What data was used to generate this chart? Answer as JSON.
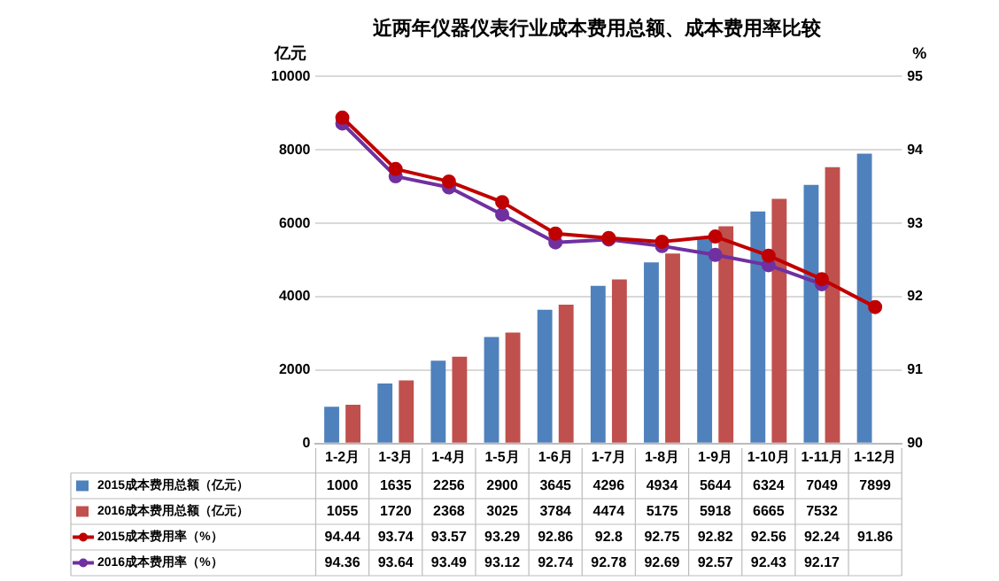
{
  "chart_data": {
    "type": "bar",
    "title": "近两年仪器仪表行业成本费用总额、成本费用率比较",
    "ylabel": "亿元",
    "y2label": "%",
    "categories": [
      "1-2月",
      "1-3月",
      "1-4月",
      "1-5月",
      "1-6月",
      "1-7月",
      "1-8月",
      "1-9月",
      "1-10月",
      "1-11月",
      "1-12月"
    ],
    "series": [
      {
        "name": "2015成本费用总额（亿元）",
        "color": "#4f81bd",
        "values": [
          1000,
          1635,
          2256,
          2900,
          3645,
          4296,
          4934,
          5644,
          6324,
          7049,
          7899
        ]
      },
      {
        "name": "2016成本费用总额（亿元）",
        "color": "#c0504d",
        "values": [
          1055,
          1720,
          2368,
          3025,
          3784,
          4474,
          5175,
          5918,
          6665,
          7532,
          null
        ]
      },
      {
        "name": "2015成本费用率（%）",
        "type": "line",
        "axis": "y2",
        "color": "#c00000",
        "values": [
          94.44,
          93.74,
          93.57,
          93.29,
          92.86,
          92.8,
          92.75,
          92.82,
          92.56,
          92.24,
          91.86
        ]
      },
      {
        "name": "2016成本费用率（%）",
        "type": "line",
        "axis": "y2",
        "color": "#7030a0",
        "values": [
          94.36,
          93.64,
          93.49,
          93.12,
          92.74,
          92.78,
          92.69,
          92.57,
          92.43,
          92.17,
          null
        ]
      }
    ],
    "ylim": [
      0,
      10000
    ],
    "yticks": [
      0,
      2000,
      4000,
      6000,
      8000,
      10000
    ],
    "y2lim": [
      90,
      95
    ],
    "y2ticks": [
      90,
      91,
      92,
      93,
      94,
      95
    ],
    "grid": "y",
    "marker": "circle",
    "legend": "bottom",
    "data_labels": true
  }
}
